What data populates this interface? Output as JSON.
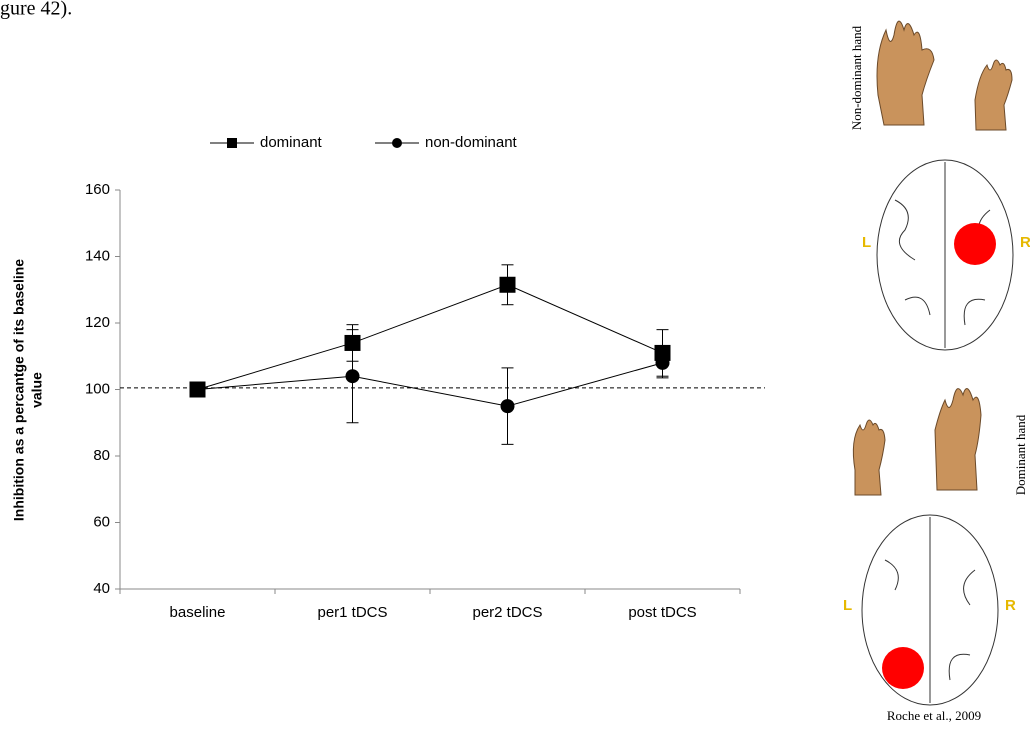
{
  "chart_data": {
    "type": "line",
    "y_label": [
      "Inhibition as a percantge of its baseline",
      "value"
    ],
    "categories": [
      "baseline",
      "per1 tDCS",
      "per2 tDCS",
      "post tDCS"
    ],
    "series": [
      {
        "name": "dominant",
        "color": "#000000",
        "marker": "square",
        "values": [
          100,
          114,
          131.5,
          111
        ],
        "errors": [
          0,
          5.5,
          6,
          7
        ]
      },
      {
        "name": "non-dominant",
        "color": "#000000",
        "marker": "circle",
        "values": [
          100,
          104,
          95,
          108
        ],
        "errors": [
          0,
          14,
          11.5,
          4.5
        ]
      }
    ],
    "reference_line": 100.5,
    "ylim": [
      40,
      160
    ],
    "yticks": [
      40,
      60,
      80,
      100,
      120,
      140,
      160
    ],
    "grid": false,
    "legend": "top"
  },
  "caption_fragment": "gure 42).",
  "illustration": {
    "top_label": "Non-dominant hand",
    "bottom_label": "Dominant hand",
    "left": "L",
    "right": "R",
    "credit": "Roche et al., 2009"
  }
}
